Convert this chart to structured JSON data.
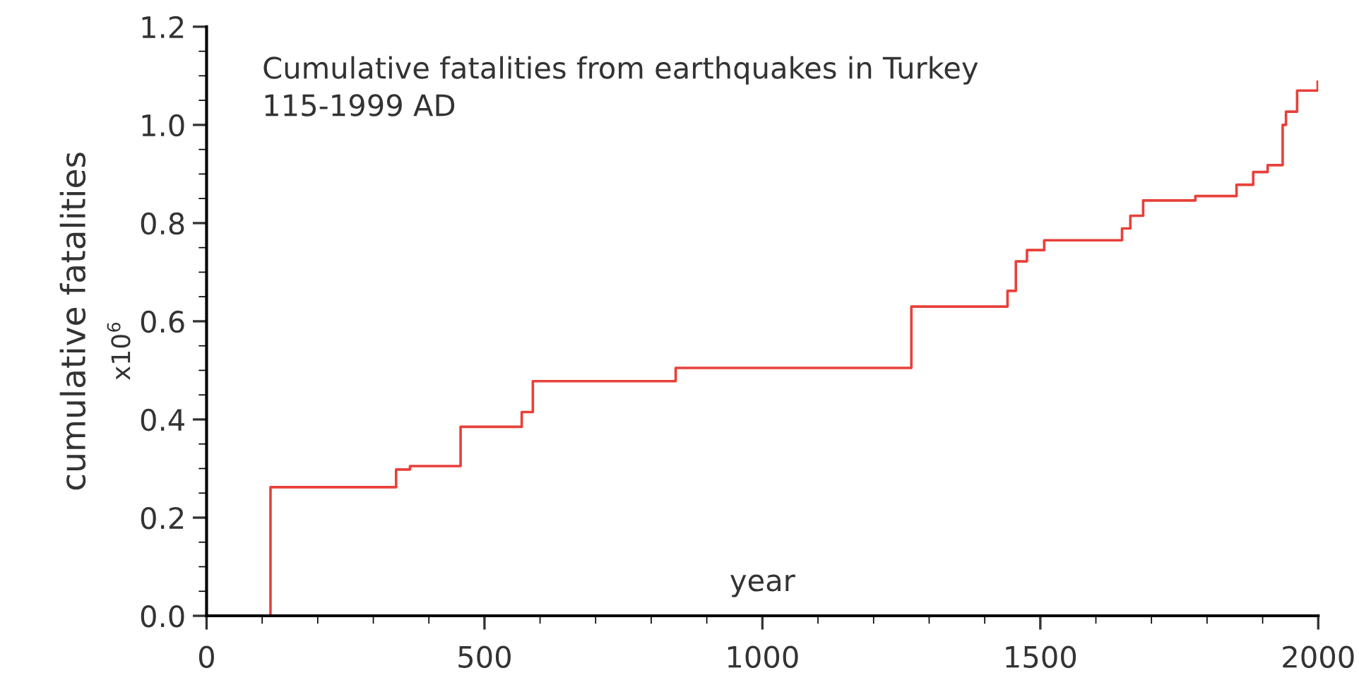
{
  "chart_data": {
    "type": "step",
    "title": "Cumulative fatalities from earthquakes in Turkey",
    "subtitle": "115-1999 AD",
    "xlabel": "year",
    "ylabel": "cumulative fatalities",
    "annotations": [
      "x10$^{6}$"
    ],
    "x": [
      0,
      115,
      341,
      366,
      457,
      567,
      587,
      844,
      1268,
      1441,
      1456,
      1476,
      1507,
      1647,
      1662,
      1685,
      1779,
      1853,
      1883,
      1909,
      1936,
      1942,
      1962,
      1999
    ],
    "series": [
      {
        "color": "#e8403a",
        "values": [
          0.0,
          0.262,
          0.298,
          0.305,
          0.385,
          0.415,
          0.478,
          0.505,
          0.63,
          0.662,
          0.722,
          0.745,
          0.765,
          0.789,
          0.815,
          0.846,
          0.855,
          0.878,
          0.904,
          0.918,
          1.0,
          1.027,
          1.07,
          1.088
        ]
      }
    ],
    "xlim": [
      0,
      2000
    ],
    "ylim": [
      0,
      1.2
    ],
    "xticks": [
      0,
      500,
      1000,
      1500,
      2000
    ],
    "yticks": [
      {
        "value": 0,
        "label": "0.0"
      },
      {
        "value": 0.2,
        "label": "0.2"
      },
      {
        "value": 0.4,
        "label": "0.4"
      },
      {
        "value": 0.6,
        "label": "0.6"
      },
      {
        "value": 0.8,
        "label": "0.8"
      },
      {
        "value": 1.0,
        "label": "1.0"
      },
      {
        "value": 1.2,
        "label": "1.2"
      }
    ],
    "grid": false,
    "legend": false
  }
}
